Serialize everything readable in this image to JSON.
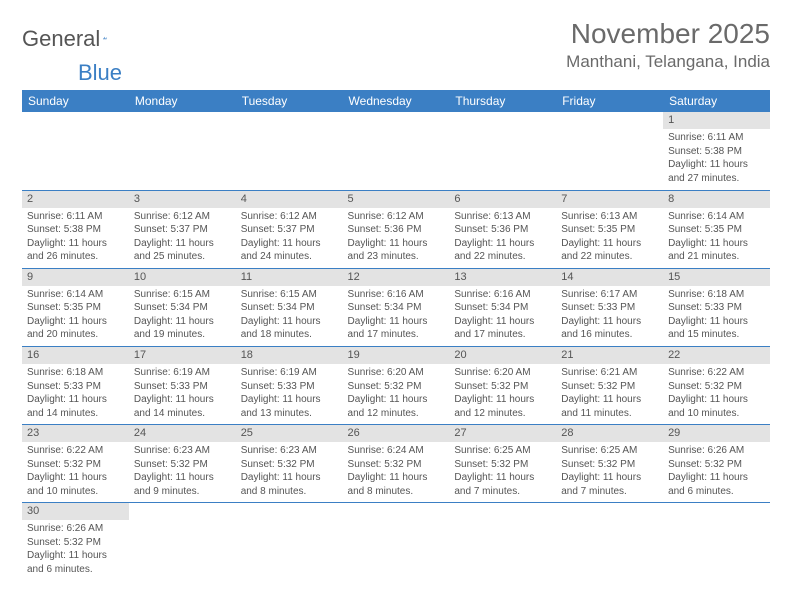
{
  "logo": {
    "text1": "General",
    "text2": "Blue"
  },
  "title": "November 2025",
  "location": "Manthani, Telangana, India",
  "day_headers": [
    "Sunday",
    "Monday",
    "Tuesday",
    "Wednesday",
    "Thursday",
    "Friday",
    "Saturday"
  ],
  "colors": {
    "header_bg": "#3b7fc4",
    "header_fg": "#ffffff",
    "daynum_bg": "#e3e3e3",
    "text": "#555555",
    "row_border": "#3b7fc4"
  },
  "first_day_column": 6,
  "days": [
    {
      "n": 1,
      "sunrise": "6:11 AM",
      "sunset": "5:38 PM",
      "dl_h": 11,
      "dl_m": 27
    },
    {
      "n": 2,
      "sunrise": "6:11 AM",
      "sunset": "5:38 PM",
      "dl_h": 11,
      "dl_m": 26
    },
    {
      "n": 3,
      "sunrise": "6:12 AM",
      "sunset": "5:37 PM",
      "dl_h": 11,
      "dl_m": 25
    },
    {
      "n": 4,
      "sunrise": "6:12 AM",
      "sunset": "5:37 PM",
      "dl_h": 11,
      "dl_m": 24
    },
    {
      "n": 5,
      "sunrise": "6:12 AM",
      "sunset": "5:36 PM",
      "dl_h": 11,
      "dl_m": 23
    },
    {
      "n": 6,
      "sunrise": "6:13 AM",
      "sunset": "5:36 PM",
      "dl_h": 11,
      "dl_m": 22
    },
    {
      "n": 7,
      "sunrise": "6:13 AM",
      "sunset": "5:35 PM",
      "dl_h": 11,
      "dl_m": 22
    },
    {
      "n": 8,
      "sunrise": "6:14 AM",
      "sunset": "5:35 PM",
      "dl_h": 11,
      "dl_m": 21
    },
    {
      "n": 9,
      "sunrise": "6:14 AM",
      "sunset": "5:35 PM",
      "dl_h": 11,
      "dl_m": 20
    },
    {
      "n": 10,
      "sunrise": "6:15 AM",
      "sunset": "5:34 PM",
      "dl_h": 11,
      "dl_m": 19
    },
    {
      "n": 11,
      "sunrise": "6:15 AM",
      "sunset": "5:34 PM",
      "dl_h": 11,
      "dl_m": 18
    },
    {
      "n": 12,
      "sunrise": "6:16 AM",
      "sunset": "5:34 PM",
      "dl_h": 11,
      "dl_m": 17
    },
    {
      "n": 13,
      "sunrise": "6:16 AM",
      "sunset": "5:34 PM",
      "dl_h": 11,
      "dl_m": 17
    },
    {
      "n": 14,
      "sunrise": "6:17 AM",
      "sunset": "5:33 PM",
      "dl_h": 11,
      "dl_m": 16
    },
    {
      "n": 15,
      "sunrise": "6:18 AM",
      "sunset": "5:33 PM",
      "dl_h": 11,
      "dl_m": 15
    },
    {
      "n": 16,
      "sunrise": "6:18 AM",
      "sunset": "5:33 PM",
      "dl_h": 11,
      "dl_m": 14
    },
    {
      "n": 17,
      "sunrise": "6:19 AM",
      "sunset": "5:33 PM",
      "dl_h": 11,
      "dl_m": 14
    },
    {
      "n": 18,
      "sunrise": "6:19 AM",
      "sunset": "5:33 PM",
      "dl_h": 11,
      "dl_m": 13
    },
    {
      "n": 19,
      "sunrise": "6:20 AM",
      "sunset": "5:32 PM",
      "dl_h": 11,
      "dl_m": 12
    },
    {
      "n": 20,
      "sunrise": "6:20 AM",
      "sunset": "5:32 PM",
      "dl_h": 11,
      "dl_m": 12
    },
    {
      "n": 21,
      "sunrise": "6:21 AM",
      "sunset": "5:32 PM",
      "dl_h": 11,
      "dl_m": 11
    },
    {
      "n": 22,
      "sunrise": "6:22 AM",
      "sunset": "5:32 PM",
      "dl_h": 11,
      "dl_m": 10
    },
    {
      "n": 23,
      "sunrise": "6:22 AM",
      "sunset": "5:32 PM",
      "dl_h": 11,
      "dl_m": 10
    },
    {
      "n": 24,
      "sunrise": "6:23 AM",
      "sunset": "5:32 PM",
      "dl_h": 11,
      "dl_m": 9
    },
    {
      "n": 25,
      "sunrise": "6:23 AM",
      "sunset": "5:32 PM",
      "dl_h": 11,
      "dl_m": 8
    },
    {
      "n": 26,
      "sunrise": "6:24 AM",
      "sunset": "5:32 PM",
      "dl_h": 11,
      "dl_m": 8
    },
    {
      "n": 27,
      "sunrise": "6:25 AM",
      "sunset": "5:32 PM",
      "dl_h": 11,
      "dl_m": 7
    },
    {
      "n": 28,
      "sunrise": "6:25 AM",
      "sunset": "5:32 PM",
      "dl_h": 11,
      "dl_m": 7
    },
    {
      "n": 29,
      "sunrise": "6:26 AM",
      "sunset": "5:32 PM",
      "dl_h": 11,
      "dl_m": 6
    },
    {
      "n": 30,
      "sunrise": "6:26 AM",
      "sunset": "5:32 PM",
      "dl_h": 11,
      "dl_m": 6
    }
  ],
  "labels": {
    "sunrise_prefix": "Sunrise: ",
    "sunset_prefix": "Sunset: ",
    "daylight_prefix": "Daylight: ",
    "hours_word": " hours",
    "and_word": "and ",
    "minutes_word": " minutes."
  }
}
